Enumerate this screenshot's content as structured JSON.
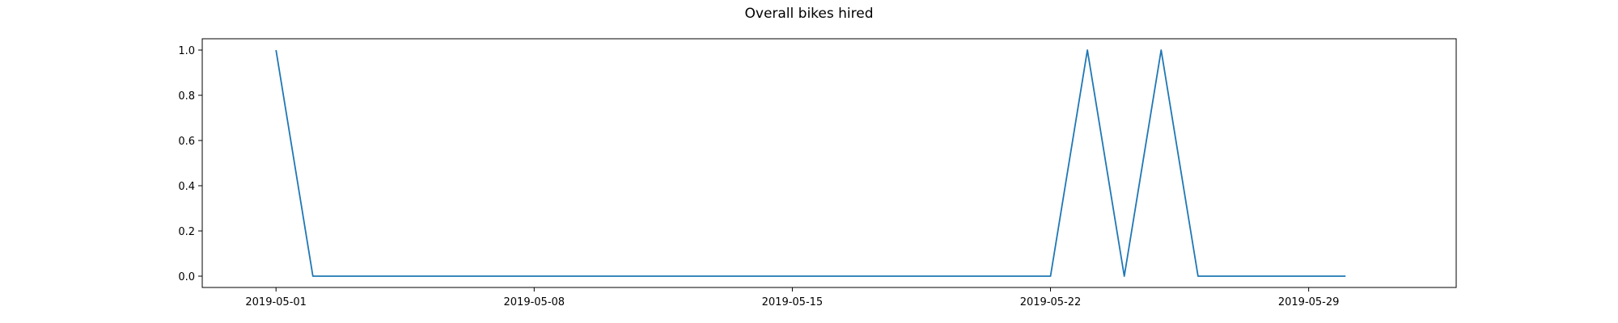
{
  "chart_data": {
    "type": "line",
    "title": "Overall bikes hired",
    "xlabel": "",
    "ylabel": "",
    "xlim": [
      "2019-04-29",
      "2019-06-02"
    ],
    "ylim": [
      -0.05,
      1.05
    ],
    "x_ticks": [
      "2019-05-01",
      "2019-05-08",
      "2019-05-15",
      "2019-05-22",
      "2019-05-29"
    ],
    "y_ticks": [
      "0.0",
      "0.2",
      "0.4",
      "0.6",
      "0.8",
      "1.0"
    ],
    "grid": false,
    "series": [
      {
        "color": "#1f77b4",
        "x": [
          "2019-05-01",
          "2019-05-02",
          "2019-05-03",
          "2019-05-04",
          "2019-05-05",
          "2019-05-06",
          "2019-05-07",
          "2019-05-08",
          "2019-05-09",
          "2019-05-10",
          "2019-05-11",
          "2019-05-12",
          "2019-05-13",
          "2019-05-14",
          "2019-05-15",
          "2019-05-16",
          "2019-05-17",
          "2019-05-18",
          "2019-05-19",
          "2019-05-20",
          "2019-05-21",
          "2019-05-22",
          "2019-05-23",
          "2019-05-24",
          "2019-05-25",
          "2019-05-26",
          "2019-05-27",
          "2019-05-28",
          "2019-05-29",
          "2019-05-30"
        ],
        "values": [
          1,
          0,
          0,
          0,
          0,
          0,
          0,
          0,
          0,
          0,
          0,
          0,
          0,
          0,
          0,
          0,
          0,
          0,
          0,
          0,
          0,
          0,
          1,
          0,
          1,
          0,
          0,
          0,
          0,
          0
        ]
      }
    ]
  }
}
